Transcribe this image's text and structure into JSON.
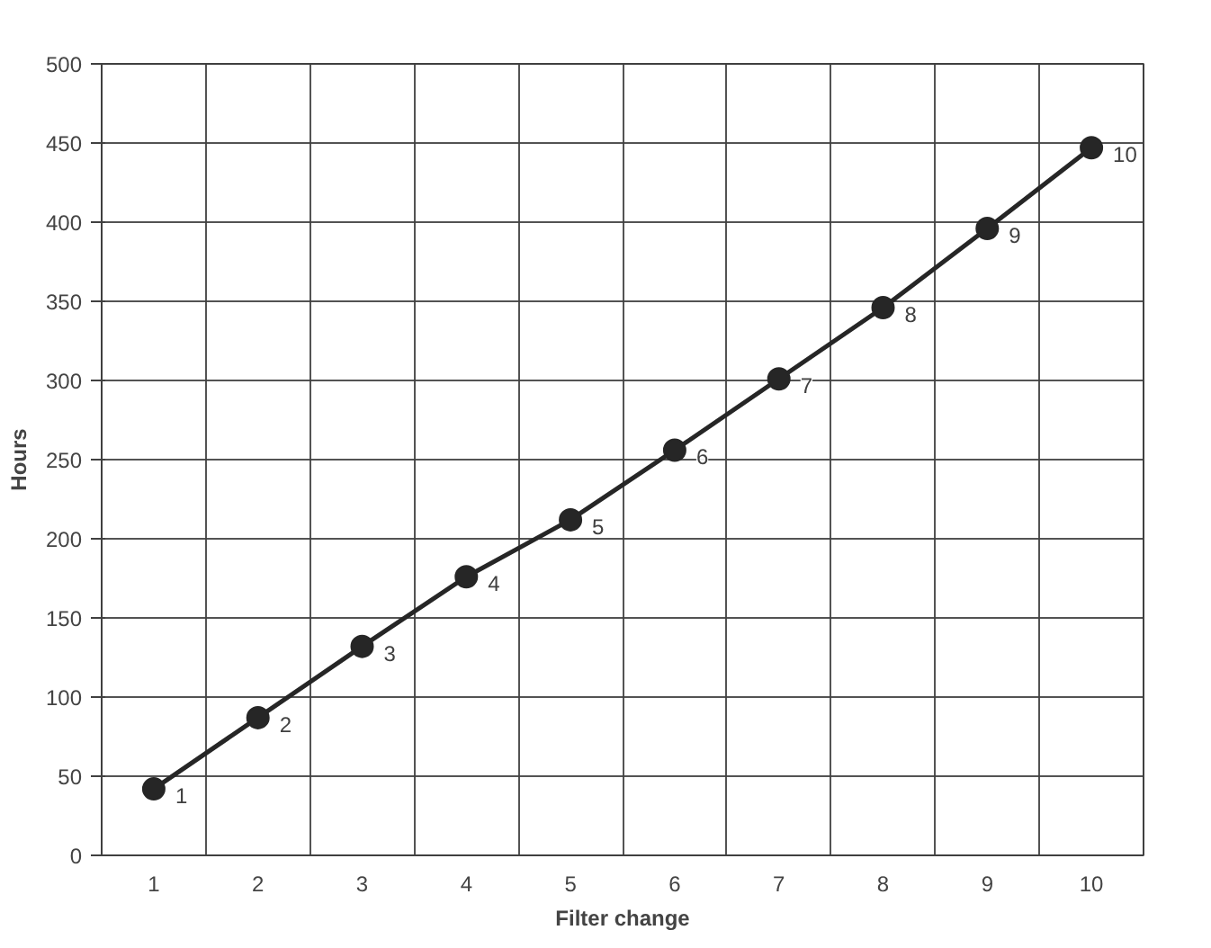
{
  "chart_data": {
    "type": "line",
    "xlabel": "Filter change",
    "ylabel": "Hours",
    "categories": [
      "1",
      "2",
      "3",
      "4",
      "5",
      "6",
      "7",
      "8",
      "9",
      "10"
    ],
    "series": [
      {
        "color": "#262626",
        "values": [
          42,
          87,
          132,
          176,
          212,
          256,
          301,
          346,
          396,
          447
        ]
      }
    ],
    "annotations": [
      {
        "text": "1",
        "x": "1",
        "y": 42
      },
      {
        "text": "2",
        "x": "2",
        "y": 87
      },
      {
        "text": "3",
        "x": "3",
        "y": 132
      },
      {
        "text": "4",
        "x": "4",
        "y": 176
      },
      {
        "text": "5",
        "x": "5",
        "y": 212
      },
      {
        "text": "6",
        "x": "6",
        "y": 256
      },
      {
        "text": "7",
        "x": "7",
        "y": 301
      },
      {
        "text": "8",
        "x": "8",
        "y": 346
      },
      {
        "text": "9",
        "x": "9",
        "y": 396
      },
      {
        "text": "10",
        "x": "10",
        "y": 447
      }
    ],
    "ylim": [
      0,
      500
    ],
    "yticks": [
      0,
      50,
      100,
      150,
      200,
      250,
      300,
      350,
      400,
      450,
      500
    ],
    "grid": true,
    "marker": "circle",
    "line_style": "solid"
  }
}
